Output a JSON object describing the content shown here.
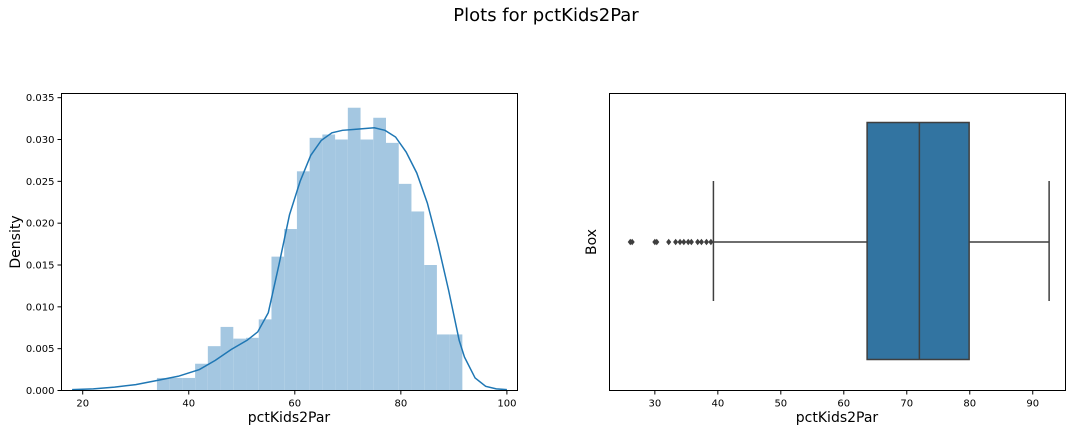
{
  "suptitle": "Plots for pctKids2Par",
  "chart_data": [
    {
      "type": "histogram",
      "xlabel": "pctKids2Par",
      "ylabel": "Density",
      "xlim": [
        16,
        102
      ],
      "ylim": [
        0,
        0.0355
      ],
      "xticks": [
        20,
        40,
        60,
        80,
        100
      ],
      "yticks": [
        0.0,
        0.005,
        0.01,
        0.015,
        0.02,
        0.025,
        0.03,
        0.035
      ],
      "ytick_labels": [
        "0.000",
        "0.005",
        "0.010",
        "0.015",
        "0.020",
        "0.025",
        "0.030",
        "0.035"
      ],
      "bar_color": "#a4c7e1",
      "kde_color": "#1f77b4",
      "bins": [
        {
          "x0": 34.0,
          "x1": 36.4,
          "density": 0.0015
        },
        {
          "x0": 36.4,
          "x1": 38.8,
          "density": 0.0015
        },
        {
          "x0": 38.8,
          "x1": 41.2,
          "density": 0.0015
        },
        {
          "x0": 41.2,
          "x1": 43.6,
          "density": 0.0032
        },
        {
          "x0": 43.6,
          "x1": 46.0,
          "density": 0.0053
        },
        {
          "x0": 46.0,
          "x1": 48.4,
          "density": 0.0076
        },
        {
          "x0": 48.4,
          "x1": 50.8,
          "density": 0.0062
        },
        {
          "x0": 50.8,
          "x1": 53.2,
          "density": 0.0063
        },
        {
          "x0": 53.2,
          "x1": 55.6,
          "density": 0.0085
        },
        {
          "x0": 55.6,
          "x1": 58.0,
          "density": 0.016
        },
        {
          "x0": 58.0,
          "x1": 60.4,
          "density": 0.0193
        },
        {
          "x0": 60.4,
          "x1": 62.8,
          "density": 0.0262
        },
        {
          "x0": 62.8,
          "x1": 65.2,
          "density": 0.0302
        },
        {
          "x0": 65.2,
          "x1": 67.6,
          "density": 0.0306
        },
        {
          "x0": 67.6,
          "x1": 70.0,
          "density": 0.03
        },
        {
          "x0": 70.0,
          "x1": 72.4,
          "density": 0.0338
        },
        {
          "x0": 72.4,
          "x1": 74.8,
          "density": 0.03
        },
        {
          "x0": 74.8,
          "x1": 77.2,
          "density": 0.0326
        },
        {
          "x0": 77.2,
          "x1": 79.6,
          "density": 0.0296
        },
        {
          "x0": 79.6,
          "x1": 82.0,
          "density": 0.0247
        },
        {
          "x0": 82.0,
          "x1": 84.4,
          "density": 0.0214
        },
        {
          "x0": 84.4,
          "x1": 86.8,
          "density": 0.015
        },
        {
          "x0": 86.8,
          "x1": 89.2,
          "density": 0.0067
        },
        {
          "x0": 89.2,
          "x1": 91.6,
          "density": 0.0067
        }
      ],
      "kde": {
        "x": [
          18,
          22,
          26,
          30,
          34,
          38,
          42,
          45,
          48,
          51,
          53,
          55,
          57,
          59,
          61,
          63,
          65,
          67,
          69,
          71,
          73,
          75,
          77,
          79,
          81,
          83,
          85,
          87,
          89,
          91,
          92,
          94,
          96,
          98,
          100
        ],
        "y": [
          0.0001,
          0.0002,
          0.0004,
          0.0007,
          0.0012,
          0.0017,
          0.0025,
          0.0036,
          0.0049,
          0.006,
          0.007,
          0.0093,
          0.015,
          0.021,
          0.025,
          0.0281,
          0.0299,
          0.0308,
          0.0311,
          0.0312,
          0.0313,
          0.0314,
          0.0311,
          0.0303,
          0.0285,
          0.026,
          0.0224,
          0.0175,
          0.012,
          0.006,
          0.004,
          0.0015,
          0.0005,
          0.0002,
          0.0001
        ]
      }
    },
    {
      "type": "box",
      "xlabel": "pctKids2Par",
      "ylabel": "Box",
      "xlim": [
        22.8,
        95.2
      ],
      "xticks": [
        30,
        40,
        50,
        60,
        70,
        80,
        90
      ],
      "box_color": "#3274a1",
      "line_color": "#3f3f3f",
      "stats": {
        "whisker_low": 39.3,
        "q1": 63.7,
        "median": 72.0,
        "q3": 79.9,
        "whisker_high": 92.6
      },
      "outliers": [
        26.1,
        26.4,
        30.0,
        30.3,
        32.2,
        33.3,
        34.0,
        34.6,
        35.3,
        35.8,
        36.8,
        37.4,
        38.2,
        38.9
      ]
    }
  ]
}
